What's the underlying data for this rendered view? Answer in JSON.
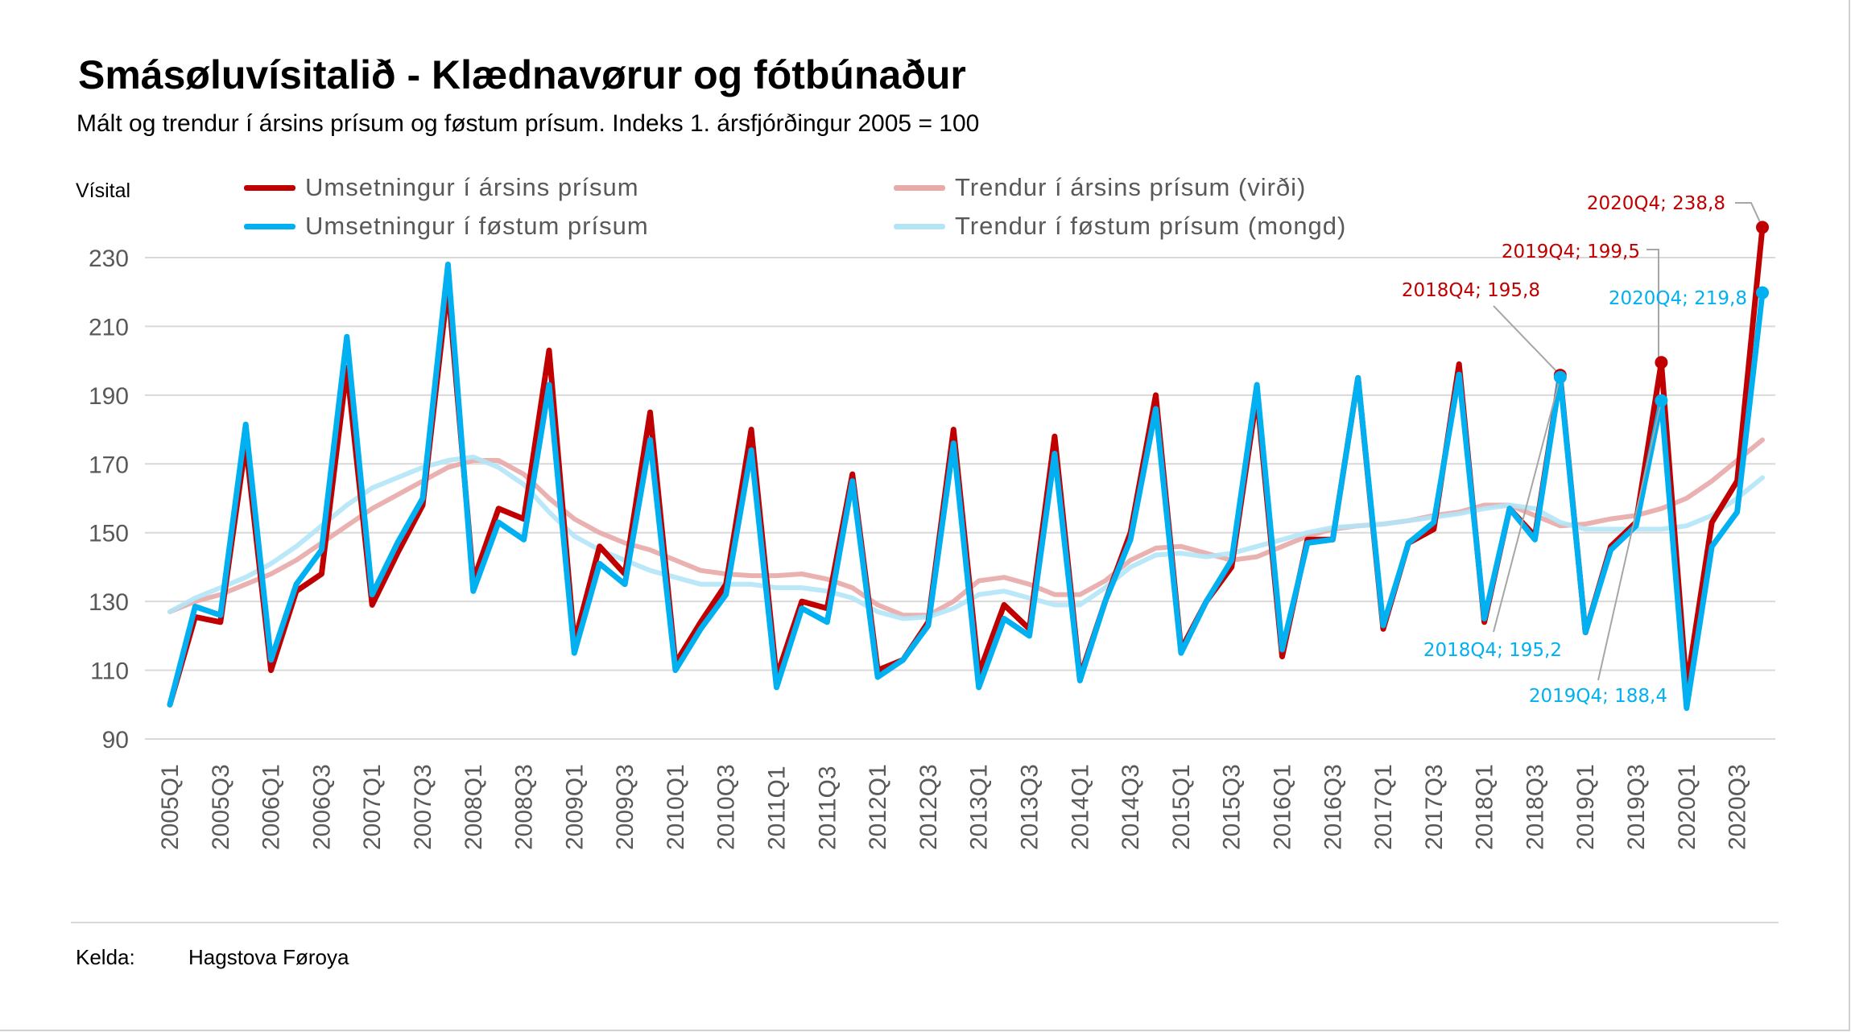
{
  "title": "Smásøluvísitalið - Klædnavørur og fótbúnaður",
  "subtitle": "Mált og trendur í ársins prísum og føstum prísum. Indeks 1. ársfjórðingur 2005 = 100",
  "source": {
    "label": "Kelda:",
    "value": "Hagstova Føroya"
  },
  "chart_data": {
    "type": "line",
    "ylabel": "Vísital",
    "ylim": [
      90,
      240
    ],
    "yticks": [
      90,
      110,
      130,
      150,
      170,
      190,
      210,
      230
    ],
    "grid": true,
    "legend_position": "top",
    "x": [
      "2005Q1",
      "2005Q2",
      "2005Q3",
      "2005Q4",
      "2006Q1",
      "2006Q2",
      "2006Q3",
      "2006Q4",
      "2007Q1",
      "2007Q2",
      "2007Q3",
      "2007Q4",
      "2008Q1",
      "2008Q2",
      "2008Q3",
      "2008Q4",
      "2009Q1",
      "2009Q2",
      "2009Q3",
      "2009Q4",
      "2010Q1",
      "2010Q2",
      "2010Q3",
      "2010Q4",
      "2011Q1",
      "2011Q2",
      "2011Q3",
      "2011Q4",
      "2012Q1",
      "2012Q2",
      "2012Q3",
      "2012Q4",
      "2013Q1",
      "2013Q2",
      "2013Q3",
      "2013Q4",
      "2014Q1",
      "2014Q2",
      "2014Q3",
      "2014Q4",
      "2015Q1",
      "2015Q2",
      "2015Q3",
      "2015Q4",
      "2016Q1",
      "2016Q2",
      "2016Q3",
      "2016Q4",
      "2017Q1",
      "2017Q2",
      "2017Q3",
      "2017Q4",
      "2018Q1",
      "2018Q2",
      "2018Q3",
      "2018Q4",
      "2019Q1",
      "2019Q2",
      "2019Q3",
      "2019Q4",
      "2020Q1",
      "2020Q2",
      "2020Q3",
      "2020Q4"
    ],
    "xtick_labels": [
      "2005Q1",
      "2005Q3",
      "2006Q1",
      "2006Q3",
      "2007Q1",
      "2007Q3",
      "2008Q1",
      "2008Q3",
      "2009Q1",
      "2009Q3",
      "2010Q1",
      "2010Q3",
      "2011Q1",
      "2011Q3",
      "2012Q1",
      "2012Q3",
      "2013Q1",
      "2013Q3",
      "2014Q1",
      "2014Q3",
      "2015Q1",
      "2015Q3",
      "2016Q1",
      "2016Q3",
      "2017Q1",
      "2017Q3",
      "2018Q1",
      "2018Q3",
      "2019Q1",
      "2019Q3",
      "2020Q1",
      "2020Q3"
    ],
    "series": [
      {
        "name": "Trendur í ársins prísum (virði)",
        "color": "#e8a9a9",
        "width": 6,
        "values": [
          127,
          130,
          132,
          135,
          138,
          142,
          147,
          152,
          157,
          161,
          165,
          169,
          171,
          171,
          167,
          160,
          154,
          150,
          147,
          145,
          142,
          139,
          138,
          137.5,
          137.5,
          138,
          136.5,
          134,
          129,
          126,
          126,
          130,
          136,
          137,
          135,
          132,
          132,
          136,
          142,
          145.5,
          146,
          144,
          142,
          143,
          146,
          149,
          151,
          152,
          152.5,
          153.5,
          155,
          156,
          158,
          158,
          155,
          152,
          152.5,
          154,
          155,
          157,
          160,
          165,
          171,
          177
        ]
      },
      {
        "name": "Trendur í føstum prísum (mongd)",
        "color": "#b3e5f7",
        "width": 6,
        "values": [
          127,
          131,
          134,
          137,
          141,
          146,
          152,
          158,
          163,
          166,
          169,
          171,
          172,
          169,
          164,
          156,
          149,
          145,
          142,
          139,
          137,
          135,
          135,
          135,
          134,
          134,
          133,
          131,
          127,
          125,
          125.5,
          128,
          132,
          133,
          131,
          129,
          129,
          134,
          140,
          143.5,
          144,
          143,
          144,
          146,
          148,
          150,
          151.5,
          152,
          152.5,
          153.5,
          154.5,
          155.5,
          157,
          158,
          157,
          153,
          151,
          151,
          151,
          151,
          152,
          155,
          160,
          166
        ]
      },
      {
        "name": "Umsetningur í ársins prísum",
        "color": "#c00000",
        "width": 7,
        "values": [
          100,
          125.5,
          124,
          176,
          110,
          133,
          138,
          198,
          129,
          144,
          158,
          222,
          136,
          157,
          154,
          203,
          118,
          146,
          138,
          185,
          112,
          124,
          135,
          180,
          108,
          130,
          128,
          167,
          110,
          113,
          124,
          180,
          109,
          129,
          122,
          178,
          108,
          130,
          150,
          190,
          116,
          130,
          140,
          190,
          114,
          148,
          148,
          195,
          122,
          147,
          151,
          199,
          124,
          157,
          149,
          195.8,
          121,
          146,
          153,
          199.5,
          105,
          153,
          165,
          238.8
        ]
      },
      {
        "name": "Umsetningur í føstum prísum",
        "color": "#00b0f0",
        "width": 7,
        "values": [
          100,
          128.5,
          126,
          181.5,
          113,
          135,
          145,
          207,
          132,
          147,
          160,
          228,
          133,
          153,
          148,
          193,
          115,
          141,
          135,
          177,
          110,
          122,
          132,
          174,
          105,
          128,
          124,
          165,
          108,
          113,
          123,
          176,
          105,
          125,
          120,
          173,
          107,
          130,
          148,
          186,
          115,
          130,
          142,
          193,
          116,
          147,
          148,
          195,
          123,
          147,
          153,
          196,
          125,
          157,
          148,
          195.2,
          121,
          145,
          152,
          188.4,
          99,
          146,
          156,
          219.8
        ]
      }
    ],
    "annotations": [
      {
        "series": 2,
        "x": "2020Q4",
        "text": "2020Q4; 238,8",
        "color": "#c00000"
      },
      {
        "series": 2,
        "x": "2019Q4",
        "text": "2019Q4; 199,5",
        "color": "#c00000"
      },
      {
        "series": 2,
        "x": "2018Q4",
        "text": "2018Q4; 195,8",
        "color": "#c00000"
      },
      {
        "series": 3,
        "x": "2020Q4",
        "text": "2020Q4; 219,8",
        "color": "#00b0f0"
      },
      {
        "series": 3,
        "x": "2018Q4",
        "text": "2018Q4; 195,2",
        "color": "#00b0f0"
      },
      {
        "series": 3,
        "x": "2019Q4",
        "text": "2019Q4; 188,4",
        "color": "#00b0f0"
      }
    ]
  }
}
